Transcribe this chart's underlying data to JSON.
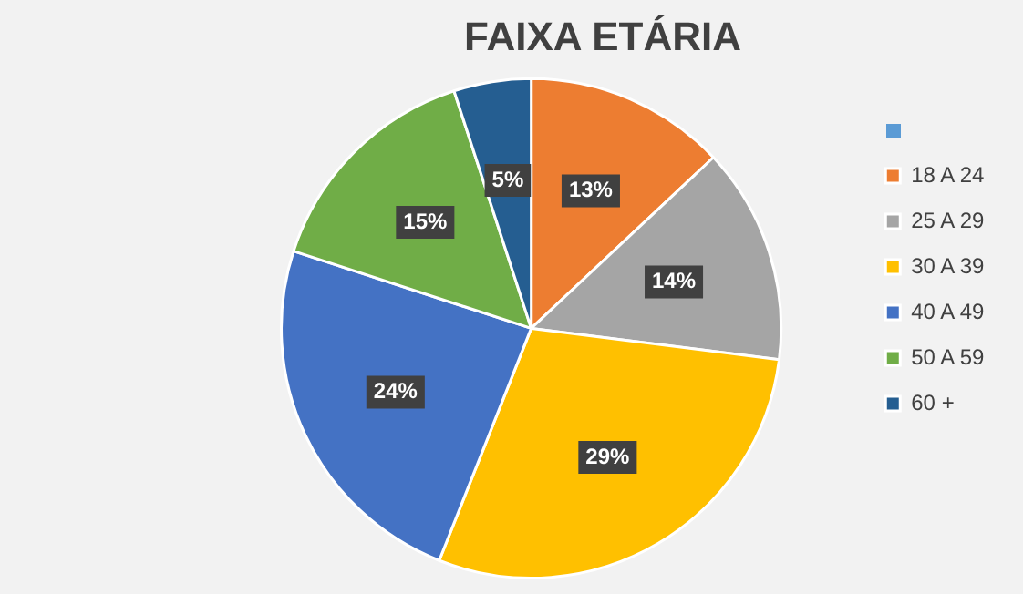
{
  "chart_data": {
    "type": "pie",
    "title": "FAIXA ETÁRIA",
    "categories": [
      null,
      "18 A 24",
      "25 A 29",
      "30 A 39",
      "40 A 49",
      "50 A 59",
      "60 +"
    ],
    "values": [
      0,
      13,
      14,
      29,
      24,
      15,
      5
    ],
    "value_labels": [
      null,
      "13%",
      "14%",
      "29%",
      "24%",
      "15%",
      "5%"
    ],
    "colors": [
      "#5b9bd5",
      "#ed7d31",
      "#a5a5a5",
      "#ffc000",
      "#4472c4",
      "#70ad47",
      "#255e91"
    ],
    "legend": "right"
  }
}
